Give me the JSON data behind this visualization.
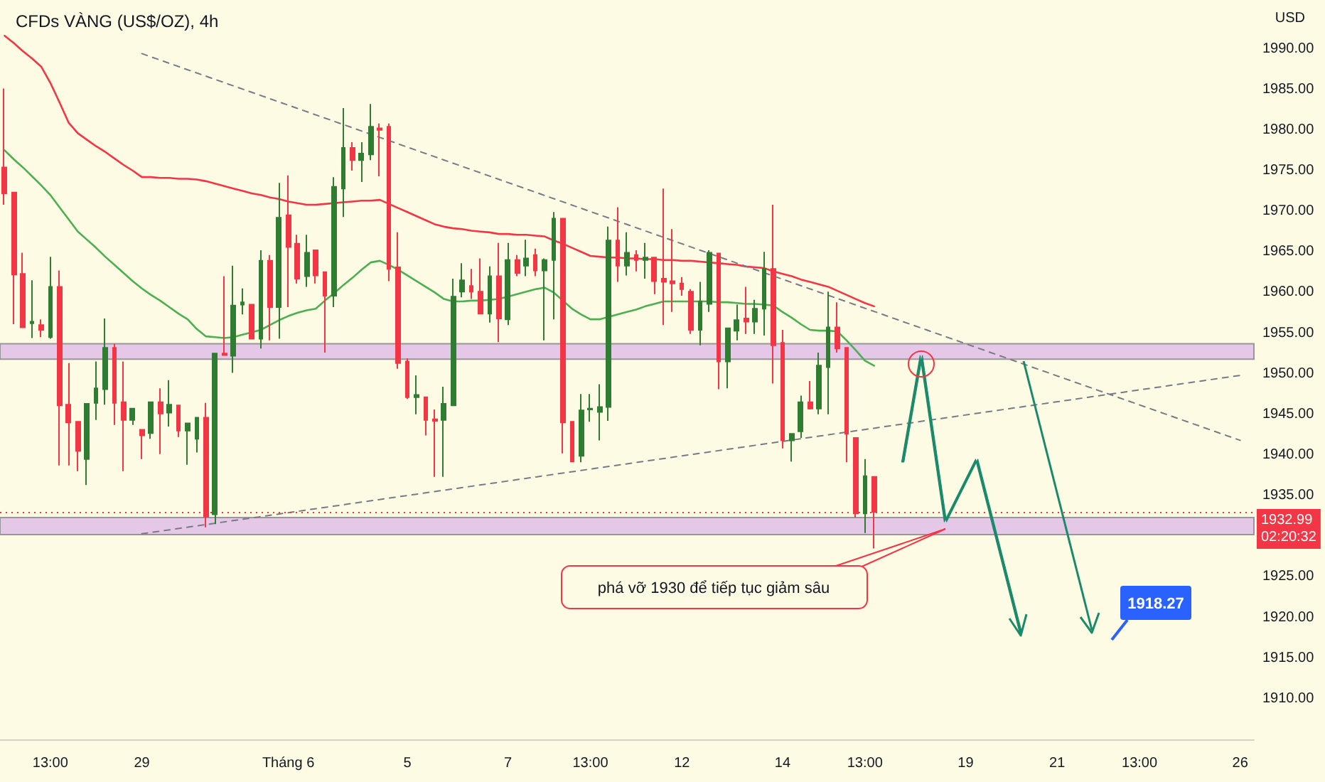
{
  "chart_data": {
    "type": "candlestick",
    "title": "CFDs VÀNG (US$/OZ), 4h",
    "ylabel": "USD",
    "categories": [
      null,
      null,
      null,
      null,
      null,
      "13:00",
      null,
      null,
      null,
      null,
      null,
      null,
      null,
      null,
      null,
      "29",
      null,
      null,
      null,
      null,
      null,
      null,
      null,
      null,
      null,
      null,
      null,
      null,
      null,
      null,
      null,
      "Tháng 6",
      null,
      null,
      null,
      null,
      null,
      null,
      null,
      null,
      null,
      null,
      null,
      null,
      "5",
      null,
      null,
      null,
      null,
      null,
      null,
      null,
      null,
      null,
      null,
      "7",
      null,
      null,
      null,
      null,
      null,
      null,
      null,
      null,
      "13:00",
      null,
      null,
      null,
      null,
      null,
      null,
      null,
      null,
      null,
      "12",
      null,
      null,
      null,
      null,
      null,
      null,
      null,
      null,
      null,
      null,
      "14",
      null,
      null,
      null,
      null,
      null,
      null,
      null,
      null,
      "13:00",
      null,
      null,
      null,
      null,
      null,
      null,
      null,
      null,
      null,
      null,
      "19",
      null,
      null,
      null,
      null,
      null,
      null,
      null,
      null,
      null,
      "21",
      null,
      null,
      null,
      null,
      null,
      null,
      null,
      null,
      "13:00",
      null,
      null,
      null,
      null,
      null,
      null,
      null,
      null,
      null,
      null,
      "26",
      null
    ],
    "ohlc": [
      [
        1975.4,
        1985.1,
        1970.8,
        1972.2
      ],
      [
        1972.3,
        1972.3,
        1956.1,
        1962.2
      ],
      [
        1962.3,
        1964.9,
        1955.7,
        1955.7
      ],
      [
        1956.2,
        1961.5,
        1954.4,
        1956.4
      ],
      [
        1956.0,
        1956.7,
        1954.5,
        1955.4
      ],
      [
        1954.5,
        1964.4,
        1954.3,
        1960.7
      ],
      [
        1960.7,
        1962.7,
        1938.7,
        1946.1
      ],
      [
        1946.2,
        1951.3,
        1938.7,
        1944.0
      ],
      [
        1944.1,
        1944.1,
        1938.0,
        1940.5
      ],
      [
        1939.5,
        1946.3,
        1936.3,
        1946.3
      ],
      [
        1946.4,
        1951.5,
        1944.3,
        1948.2
      ],
      [
        1948.1,
        1956.8,
        1946.2,
        1953.2
      ],
      [
        1953.2,
        1953.7,
        1943.7,
        1946.4
      ],
      [
        1946.5,
        1951.5,
        1938.0,
        1944.3
      ],
      [
        1944.3,
        1945.7,
        1943.7,
        1945.7
      ],
      [
        1943.1,
        1943.1,
        1939.5,
        1942.4
      ],
      [
        1942.7,
        1946.5,
        1942.0,
        1946.5
      ],
      [
        1946.5,
        1948.2,
        1940.1,
        1945.1
      ],
      [
        1945.2,
        1949.2,
        1943.5,
        1946.2
      ],
      [
        1946.1,
        1946.1,
        1942.2,
        1943.0
      ],
      [
        1943.0,
        1943.9,
        1938.8,
        1943.9
      ],
      [
        1942.0,
        1944.6,
        1940.3,
        1944.6
      ],
      [
        1944.6,
        1946.4,
        1931.1,
        1932.4
      ],
      [
        1932.7,
        1952.5,
        1931.5,
        1952.5
      ],
      [
        1952.5,
        1962.0,
        1952.3,
        1952.3
      ],
      [
        1952.2,
        1963.3,
        1950.1,
        1958.4
      ],
      [
        1958.5,
        1960.5,
        1957.3,
        1958.8
      ],
      [
        1958.5,
        1958.5,
        1954.3,
        1954.3
      ],
      [
        1954.3,
        1965.2,
        1953.1,
        1963.9
      ],
      [
        1963.9,
        1964.6,
        1954.1,
        1958.2
      ],
      [
        1958.2,
        1973.5,
        1954.3,
        1969.2
      ],
      [
        1969.5,
        1974.4,
        1958.2,
        1965.6
      ],
      [
        1966.0,
        1967.1,
        1961.1,
        1961.7
      ],
      [
        1962.0,
        1967.1,
        1960.7,
        1964.9
      ],
      [
        1965.2,
        1965.2,
        1961.1,
        1962.1
      ],
      [
        1962.5,
        1962.5,
        1952.6,
        1959.6
      ],
      [
        1959.6,
        1974.2,
        1958.2,
        1973.0
      ],
      [
        1972.8,
        1982.7,
        1969.3,
        1977.8
      ],
      [
        1977.8,
        1978.5,
        1975.0,
        1976.3
      ],
      [
        1976.3,
        1978.5,
        1973.6,
        1977.1
      ],
      [
        1977.0,
        1983.2,
        1976.3,
        1980.4
      ],
      [
        1980.2,
        1980.8,
        1974.3,
        1980.0
      ],
      [
        1980.4,
        1980.8,
        1961.4,
        1962.9
      ],
      [
        1963.1,
        1967.4,
        1950.6,
        1951.3
      ],
      [
        1951.5,
        1951.9,
        1946.9,
        1947.1
      ],
      [
        1947.1,
        1949.8,
        1945.0,
        1947.4
      ],
      [
        1947.1,
        1947.1,
        1942.4,
        1944.3
      ],
      [
        1944.4,
        1945.6,
        1937.3,
        1944.2
      ],
      [
        1944.3,
        1948.4,
        1937.3,
        1946.3
      ],
      [
        1946.1,
        1961.7,
        1946.1,
        1959.5
      ],
      [
        1960.1,
        1963.6,
        1959.4,
        1961.5
      ],
      [
        1960.8,
        1962.9,
        1959.2,
        1960.1
      ],
      [
        1960.1,
        1964.2,
        1957.3,
        1957.4
      ],
      [
        1957.4,
        1963.2,
        1956.3,
        1962.0
      ],
      [
        1962.0,
        1966.1,
        1953.9,
        1956.8
      ],
      [
        1956.7,
        1966.1,
        1956.0,
        1964.0
      ],
      [
        1964.0,
        1964.6,
        1962.0,
        1962.4
      ],
      [
        1963.3,
        1966.5,
        1962.0,
        1964.2
      ],
      [
        1964.6,
        1965.4,
        1962.0,
        1962.7
      ],
      [
        1962.7,
        1964.2,
        1954.1,
        1964.0
      ],
      [
        1964.0,
        1969.9,
        1956.7,
        1969.1
      ],
      [
        1969.1,
        1969.1,
        1940.2,
        1944.0
      ],
      [
        1944.1,
        1944.1,
        1939.2,
        1939.2
      ],
      [
        1939.9,
        1947.5,
        1939.1,
        1945.5
      ],
      [
        1945.6,
        1947.5,
        1944.1,
        1945.7
      ],
      [
        1945.3,
        1948.7,
        1941.8,
        1945.9
      ],
      [
        1945.9,
        1968.1,
        1944.2,
        1966.4
      ],
      [
        1966.4,
        1970.5,
        1961.3,
        1963.3
      ],
      [
        1963.3,
        1967.4,
        1962.1,
        1964.9
      ],
      [
        1964.6,
        1965.2,
        1962.6,
        1964.0
      ],
      [
        1964.0,
        1966.1,
        1961.7,
        1964.3
      ],
      [
        1964.3,
        1964.3,
        1959.8,
        1961.4
      ],
      [
        1961.7,
        1972.8,
        1956.0,
        1961.3
      ],
      [
        1961.4,
        1967.8,
        1957.6,
        1961.1
      ],
      [
        1961.1,
        1961.9,
        1959.6,
        1960.4
      ],
      [
        1960.1,
        1960.4,
        1954.9,
        1955.4
      ],
      [
        1955.4,
        1961.3,
        1953.5,
        1958.9
      ],
      [
        1958.6,
        1965.2,
        1957.6,
        1964.9
      ],
      [
        1964.8,
        1964.8,
        1948.1,
        1951.5
      ],
      [
        1951.5,
        1955.6,
        1948.2,
        1955.6
      ],
      [
        1955.3,
        1958.5,
        1954.1,
        1956.6
      ],
      [
        1956.8,
        1960.7,
        1954.9,
        1956.4
      ],
      [
        1956.4,
        1959.1,
        1954.9,
        1958.0
      ],
      [
        1958.0,
        1965.0,
        1954.7,
        1962.9
      ],
      [
        1962.9,
        1970.8,
        1948.8,
        1953.5
      ],
      [
        1953.8,
        1955.4,
        1940.8,
        1941.8
      ],
      [
        1941.8,
        1942.6,
        1939.2,
        1942.6
      ],
      [
        1942.9,
        1947.3,
        1942.1,
        1946.5
      ],
      [
        1946.5,
        1949.1,
        1945.6,
        1945.7
      ],
      [
        1945.7,
        1952.6,
        1945.0,
        1951.0
      ],
      [
        1950.8,
        1960.1,
        1945.0,
        1955.7
      ],
      [
        1955.7,
        1958.8,
        1952.6,
        1953.1
      ],
      [
        1953.2,
        1953.2,
        1939.1,
        1942.6
      ],
      [
        1942.1,
        1942.1,
        1932.3,
        1932.8
      ],
      [
        1932.8,
        1939.5,
        1930.4,
        1937.4
      ],
      [
        1937.3,
        1937.3,
        1928.5,
        1932.99
      ],
      null,
      null,
      null,
      null,
      null,
      null,
      null,
      null,
      null,
      null,
      null,
      null,
      null,
      null,
      null,
      null,
      null,
      null,
      null,
      null,
      null,
      null,
      null,
      null,
      null,
      null,
      null,
      null,
      null,
      null,
      null,
      null,
      null,
      null,
      null,
      null,
      null,
      null,
      null,
      null,
      null
    ],
    "series": [
      {
        "type": "line",
        "color": "#f23645",
        "values": [
          1991.6,
          1990.7,
          1989.7,
          1988.8,
          1987.8,
          1985.8,
          1983.4,
          1980.9,
          1979.6,
          1978.8,
          1978.0,
          1977.3,
          1976.5,
          1975.7,
          1975.0,
          1974.2,
          1974.2,
          1974.1,
          1974.1,
          1974.0,
          1974.0,
          1973.9,
          1973.7,
          1973.4,
          1973.1,
          1972.8,
          1972.5,
          1972.2,
          1972.0,
          1971.7,
          1971.5,
          1971.2,
          1971.0,
          1970.8,
          1970.8,
          1970.9,
          1971.0,
          1971.1,
          1971.2,
          1971.3,
          1971.3,
          1971.4,
          1970.9,
          1970.4,
          1969.9,
          1969.4,
          1968.9,
          1968.4,
          1968.1,
          1967.9,
          1967.8,
          1967.6,
          1967.5,
          1967.4,
          1967.2,
          1967.2,
          1967.1,
          1967.1,
          1967.0,
          1966.9,
          1966.4,
          1966.0,
          1965.5,
          1965.0,
          1964.5,
          1964.4,
          1964.3,
          1964.3,
          1964.2,
          1964.2,
          1964.1,
          1964.1,
          1964.0,
          1964.0,
          1963.9,
          1963.9,
          1963.8,
          1963.7,
          1963.6,
          1963.5,
          1963.4,
          1963.2,
          1963.1,
          1963.0,
          1962.6,
          1962.3,
          1962.0,
          1961.6,
          1961.3,
          1961.0,
          1960.7,
          1960.2,
          1959.7,
          1959.2,
          1958.7,
          1958.3,
          null,
          null,
          null,
          null,
          null,
          null,
          null,
          null,
          null,
          null,
          null,
          null,
          null,
          null,
          null,
          null,
          null,
          null,
          null,
          null,
          null,
          null,
          null,
          null,
          null,
          null,
          null,
          null,
          null,
          null,
          null,
          null,
          null,
          null,
          null,
          null,
          null,
          null,
          null,
          null,
          null
        ]
      },
      {
        "type": "line",
        "color": "#4caf50",
        "values": [
          1977.5,
          1976.4,
          1975.4,
          1974.3,
          1973.2,
          1972.0,
          1970.5,
          1969.0,
          1967.5,
          1966.5,
          1965.5,
          1964.4,
          1963.4,
          1962.4,
          1961.4,
          1960.5,
          1959.7,
          1959.0,
          1958.2,
          1957.4,
          1956.7,
          1955.5,
          1954.6,
          1954.5,
          1954.4,
          1954.5,
          1954.8,
          1955.1,
          1955.4,
          1956.0,
          1956.6,
          1957.1,
          1957.5,
          1957.8,
          1958.0,
          1959.0,
          1959.9,
          1960.9,
          1961.8,
          1962.8,
          1963.7,
          1963.9,
          1963.4,
          1962.8,
          1962.1,
          1961.4,
          1960.7,
          1960.0,
          1959.2,
          1958.9,
          1958.9,
          1959.0,
          1959.0,
          1959.1,
          1959.2,
          1959.5,
          1959.8,
          1960.1,
          1960.4,
          1960.6,
          1960.0,
          1959.0,
          1958.0,
          1957.3,
          1956.7,
          1956.7,
          1957.0,
          1957.3,
          1957.6,
          1957.9,
          1958.3,
          1958.6,
          1958.9,
          1958.9,
          1958.9,
          1958.9,
          1958.9,
          1958.9,
          1958.8,
          1958.8,
          1958.7,
          1958.6,
          1958.6,
          1958.5,
          1958.4,
          1957.6,
          1956.9,
          1956.1,
          1955.4,
          1955.3,
          1955.3,
          1955.2,
          1954.1,
          1952.9,
          1951.6,
          1951.0,
          null,
          null,
          null,
          null,
          null,
          null,
          null,
          null,
          null,
          null,
          null,
          null,
          null,
          null,
          null,
          null,
          null,
          null,
          null,
          null,
          null,
          null,
          null,
          null,
          null,
          null,
          null,
          null,
          null,
          null,
          null,
          null,
          null,
          null,
          null,
          null,
          null,
          null,
          null,
          null,
          null
        ]
      },
      {
        "type": "line",
        "color": "#787b86",
        "line_style": "dashed",
        "x": [
          "29",
          "26"
        ],
        "values": [
          1989.4,
          1941.8
        ]
      },
      {
        "type": "line",
        "color": "#787b86",
        "line_style": "dashed",
        "x": [
          "29",
          "26"
        ],
        "values": [
          1930.3,
          1949.8
        ]
      }
    ],
    "ylim": [
      1905,
      1996
    ],
    "yticks": [
      {
        "value": 1910,
        "label": "1910.00"
      },
      {
        "value": 1915,
        "label": "1915.00"
      },
      {
        "value": 1920,
        "label": "1920.00"
      },
      {
        "value": 1925,
        "label": "1925.00"
      },
      {
        "value": 1935,
        "label": "1935.00"
      },
      {
        "value": 1940,
        "label": "1940.00"
      },
      {
        "value": 1945,
        "label": "1945.00"
      },
      {
        "value": 1950,
        "label": "1950.00"
      },
      {
        "value": 1955,
        "label": "1955.00"
      },
      {
        "value": 1960,
        "label": "1960.00"
      },
      {
        "value": 1965,
        "label": "1965.00"
      },
      {
        "value": 1970,
        "label": "1970.00"
      },
      {
        "value": 1975,
        "label": "1975.00"
      },
      {
        "value": 1980,
        "label": "1980.00"
      },
      {
        "value": 1985,
        "label": "1985.00"
      },
      {
        "value": 1990,
        "label": "1990.00"
      }
    ],
    "ref_lines": [
      {
        "axis": "y",
        "value": 1932.99,
        "label": "1932.99\n02:20:32",
        "color": "#f23645",
        "line_style": "dotted"
      }
    ],
    "bands": [
      {
        "axis": "y",
        "from": 1951.8,
        "to": 1953.7,
        "color": "#e1bee7"
      },
      {
        "axis": "y",
        "from": 1930.2,
        "to": 1932.3,
        "color": "#e1bee7"
      }
    ],
    "annotations": [
      "phá vỡ 1930 để tiếp tục giảm sâu",
      "1918.27"
    ],
    "grid": false,
    "marker": "none"
  }
}
